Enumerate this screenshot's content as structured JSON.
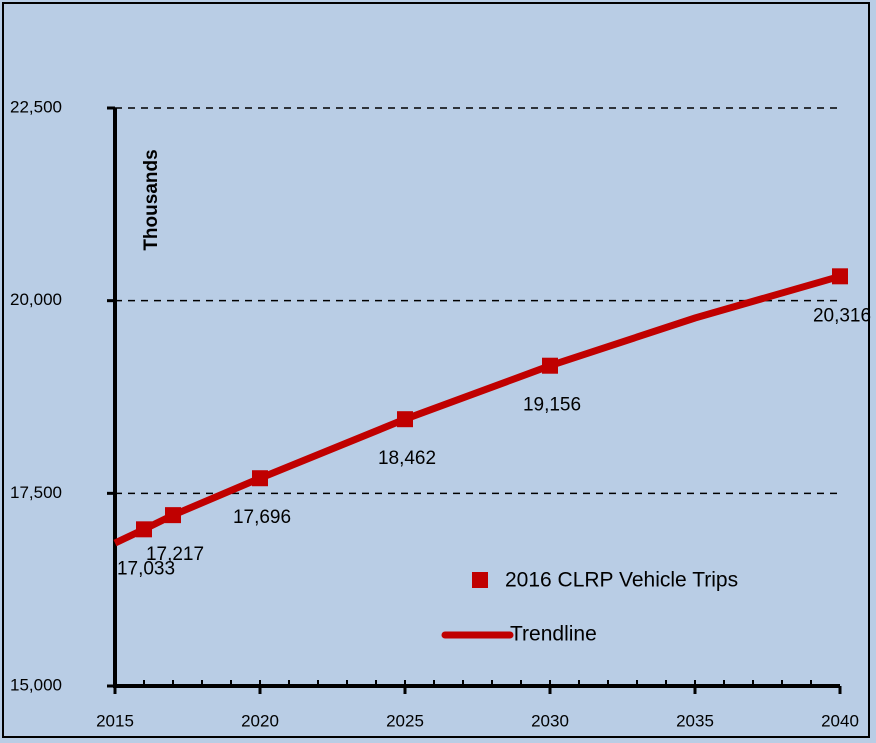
{
  "chart_data": {
    "type": "scatter",
    "y_axis_title": "Thousands",
    "xlim": [
      2015,
      2040
    ],
    "xticks": [
      2015,
      2020,
      2025,
      2030,
      2035,
      2040
    ],
    "ylim": [
      15000,
      22500
    ],
    "yticks": [
      {
        "value": 15000,
        "label": "15,000"
      },
      {
        "value": 17500,
        "label": "17,500"
      },
      {
        "value": 20000,
        "label": "20,000"
      },
      {
        "value": 22500,
        "label": "22,500"
      }
    ],
    "grid": true,
    "series": [
      {
        "name": "2016 CLRP Vehicle Trips",
        "color": "#c00000",
        "mode": "markers",
        "x": [
          2016,
          2017,
          2020,
          2025,
          2030,
          2040
        ],
        "values": [
          17033,
          17217,
          17696,
          18462,
          19156,
          20316
        ],
        "value_labels": [
          "17,033",
          "17,217",
          "17,696",
          "18,462",
          "19,156",
          "20,316"
        ]
      },
      {
        "name": "Trendline",
        "color": "#c00000",
        "mode": "line",
        "x": [
          2015,
          2016,
          2017,
          2020,
          2025,
          2030,
          2035,
          2040
        ],
        "values": [
          16855,
          17033,
          17217,
          17696,
          18462,
          19156,
          19775,
          20316
        ]
      }
    ]
  }
}
